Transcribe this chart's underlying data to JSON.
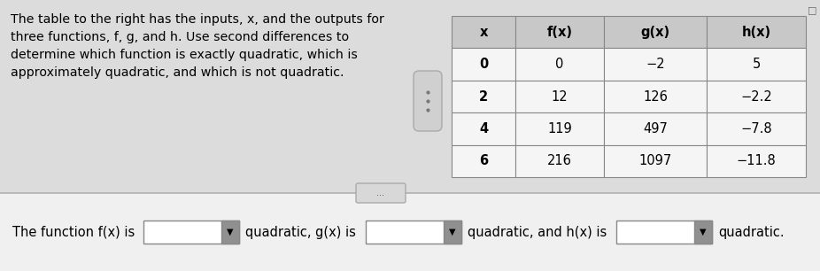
{
  "text_paragraph": "The table to the right has the inputs, x, and the outputs for\nthree functions, f, g, and h. Use second differences to\ndetermine which function is exactly quadratic, which is\napproximately quadratic, and which is not quadratic.",
  "table_headers": [
    "x",
    "f(x)",
    "g(x)",
    "h(x)"
  ],
  "table_data": [
    [
      "0",
      "0",
      "−2",
      "5"
    ],
    [
      "2",
      "12",
      "126",
      "−2.2"
    ],
    [
      "4",
      "119",
      "497",
      "−7.8"
    ],
    [
      "6",
      "216",
      "1097",
      "−11.8"
    ]
  ],
  "bottom_text": "The function f(x) is",
  "bottom_mid1": "quadratic, g(x) is",
  "bottom_mid2": "quadratic, and h(x) is",
  "bottom_end": "quadratic.",
  "bg_color": "#dcdcdc",
  "bottom_bg": "#f0f0f0",
  "table_bg": "#f5f5f5",
  "table_header_bg": "#c8c8c8",
  "table_border": "#888888",
  "fig_width": 9.26,
  "fig_height": 3.06,
  "dpi": 100
}
